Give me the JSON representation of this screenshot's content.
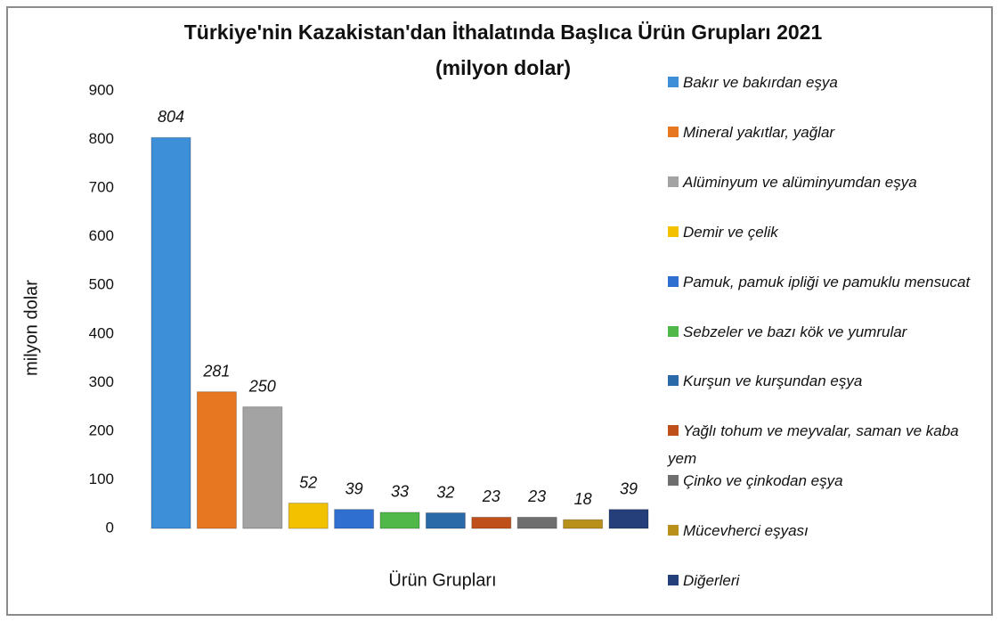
{
  "chart_data": {
    "type": "bar",
    "title": "Türkiye'nin Kazakistan'dan İthalatında Başlıca Ürün Grupları 2021",
    "subtitle": "(milyon dolar)",
    "y_label": "milyon dolar",
    "x_label": "Ürün Grupları",
    "categories": [
      "Bakır ve bakırdan eşya",
      "Mineral yakıtlar, yağlar",
      "Alüminyum ve alüminyumdan eşya",
      "Demir ve çelik",
      "Pamuk, pamuk ipliği ve pamuklu mensucat",
      "Sebzeler ve bazı kök ve yumrular",
      "Kurşun ve kurşundan eşya",
      "Yağlı tohum ve meyvalar, saman ve kaba yem",
      "Çinko ve çinkodan eşya",
      "Mücevherci eşyası",
      "Diğerleri"
    ],
    "values": [
      804,
      281,
      250,
      52,
      39,
      33,
      32,
      23,
      23,
      18,
      39
    ],
    "colors": [
      "#3d8fd8",
      "#e87722",
      "#a3a3a3",
      "#f2c200",
      "#2f6fcf",
      "#4fb848",
      "#2a6aa8",
      "#c0501a",
      "#6e6e6e",
      "#b8901a",
      "#243f7a"
    ],
    "ylim": [
      0,
      900
    ],
    "yticks": [
      0,
      100,
      200,
      300,
      400,
      500,
      600,
      700,
      800,
      900
    ],
    "grid": false,
    "legend": "right"
  }
}
